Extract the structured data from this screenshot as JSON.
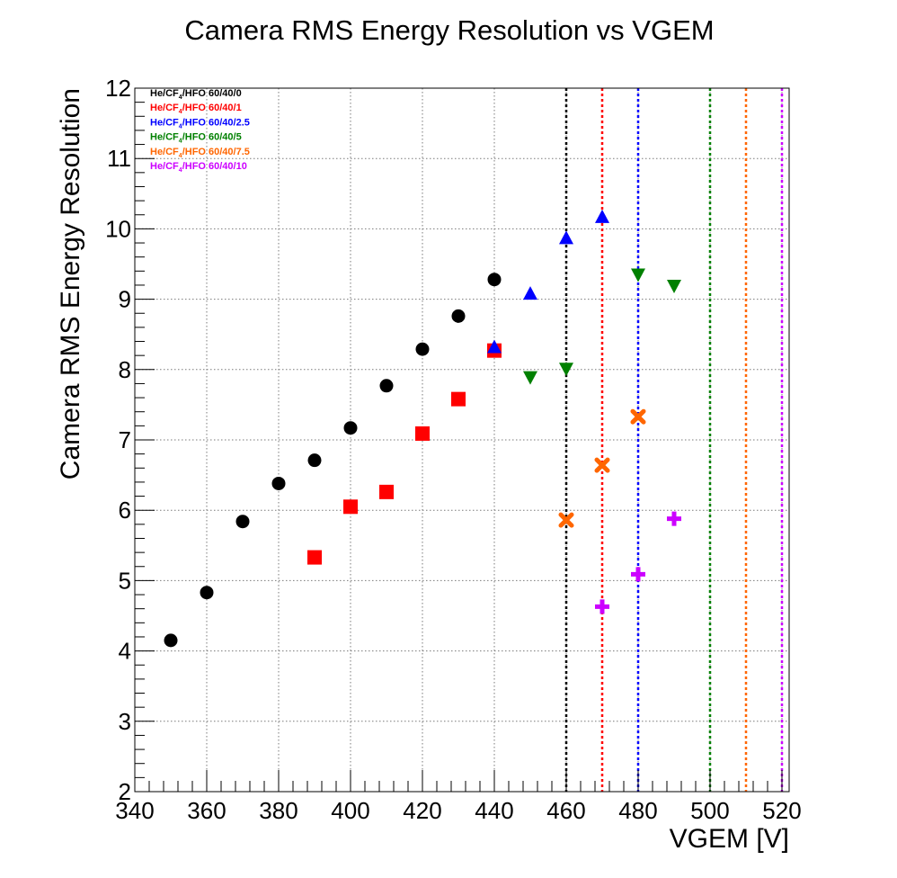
{
  "chart_data": {
    "type": "scatter",
    "title": "Camera RMS Energy Resolution vs VGEM",
    "xlabel": "VGEM [V]",
    "ylabel": "Camera RMS Energy Resolution",
    "xlim": [
      340,
      522
    ],
    "ylim": [
      2,
      12
    ],
    "xticks": [
      "340",
      "360",
      "380",
      "400",
      "420",
      "440",
      "460",
      "480",
      "500",
      "520"
    ],
    "yticks": [
      "2",
      "3",
      "4",
      "5",
      "6",
      "7",
      "8",
      "9",
      "10",
      "11",
      "12"
    ],
    "grid": true,
    "legend_position": "top-left",
    "series": [
      {
        "legend_prefix": "He/CF",
        "legend_sub": "4",
        "legend_suffix": "/HFO 60/40/0",
        "color": "#000000",
        "marker": "circle",
        "x": [
          350,
          360,
          370,
          380,
          390,
          400,
          410,
          420,
          430,
          440
        ],
        "y": [
          4.15,
          4.83,
          5.84,
          6.38,
          6.71,
          7.17,
          7.77,
          8.29,
          8.76,
          9.28
        ],
        "vline": 460
      },
      {
        "legend_prefix": "He/CF",
        "legend_sub": "4",
        "legend_suffix": "/HFO 60/40/1",
        "color": "#ff0000",
        "marker": "square",
        "x": [
          390,
          400,
          410,
          420,
          430,
          440
        ],
        "y": [
          5.33,
          6.05,
          6.26,
          7.09,
          7.58,
          8.27
        ],
        "vline": 470
      },
      {
        "legend_prefix": "He/CF",
        "legend_sub": "4",
        "legend_suffix": "/HFO 60/40/2.5",
        "color": "#0000ff",
        "marker": "triangle-up",
        "x": [
          440,
          450,
          460,
          470
        ],
        "y": [
          8.31,
          9.07,
          9.86,
          10.16
        ],
        "vline": 480
      },
      {
        "legend_prefix": "He/CF",
        "legend_sub": "4",
        "legend_suffix": "/HFO 60/40/5",
        "color": "#008000",
        "marker": "triangle-down",
        "x": [
          450,
          460,
          480,
          490
        ],
        "y": [
          7.9,
          8.02,
          9.36,
          9.2
        ],
        "vline": 500
      },
      {
        "legend_prefix": "He/CF",
        "legend_sub": "4",
        "legend_suffix": "/HFO 60/40/7.5",
        "color": "#ff6600",
        "marker": "x",
        "x": [
          460,
          470,
          480
        ],
        "y": [
          5.86,
          6.64,
          7.33
        ],
        "vline": 510
      },
      {
        "legend_prefix": "He/CF",
        "legend_sub": "4",
        "legend_suffix": "/HFO 60/40/10",
        "color": "#cc00ff",
        "marker": "cross",
        "x": [
          470,
          480,
          490
        ],
        "y": [
          4.63,
          5.09,
          5.88
        ],
        "vline": 520
      }
    ]
  }
}
